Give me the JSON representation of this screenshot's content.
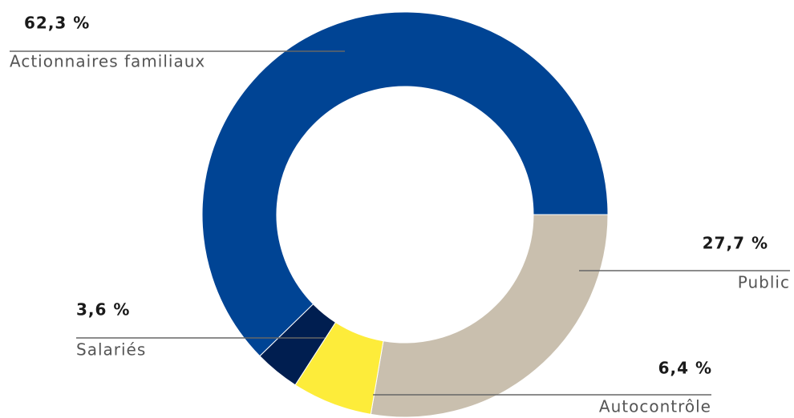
{
  "chart_data": {
    "type": "donut",
    "categories": [
      "Public",
      "Autocontrôle",
      "Salariés",
      "Actionnaires familiaux"
    ],
    "values": [
      27.7,
      6.4,
      3.6,
      62.3
    ],
    "value_labels": [
      "27,7 %",
      "6,4 %",
      "3,6 %",
      "62,3 %"
    ],
    "colors": [
      "#c9bfae",
      "#fdec3a",
      "#001e50",
      "#004494"
    ]
  }
}
